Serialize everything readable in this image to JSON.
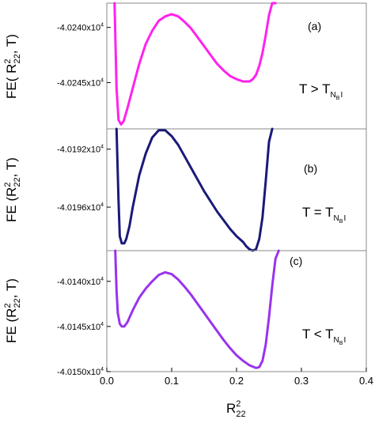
{
  "chart_data": [
    {
      "type": "line",
      "panel_label": "(a)",
      "condition": {
        "lhs": "T > T",
        "subscript": "N",
        "subsub": "B",
        "tail": "I"
      },
      "ylabel": {
        "prefix": "FE( R",
        "sup": "2",
        "sub": "22",
        "suffix": ", T)"
      },
      "color": "#ff22ee",
      "xlim": [
        0.0,
        0.4
      ],
      "ylim": [
        -40249.2,
        -40237.8
      ],
      "yticks": [
        {
          "value": -40240,
          "mantissa": "-4.0240x10",
          "exp": "4"
        },
        {
          "value": -40245,
          "mantissa": "-4.0245x10",
          "exp": "4"
        }
      ],
      "series": [
        {
          "x": [
            0.012,
            0.015,
            0.018,
            0.022,
            0.026,
            0.032,
            0.04,
            0.05,
            0.06,
            0.07,
            0.08,
            0.09,
            0.1,
            0.11,
            0.12,
            0.13,
            0.14,
            0.15,
            0.16,
            0.17,
            0.18,
            0.19,
            0.2,
            0.21,
            0.22,
            0.225,
            0.23,
            0.235,
            0.24,
            0.245,
            0.25,
            0.255,
            0.26
          ],
          "y": [
            -40237.8,
            -40245.5,
            -40248.4,
            -40248.8,
            -40248.5,
            -40247.3,
            -40245.5,
            -40243.3,
            -40241.5,
            -40240.3,
            -40239.4,
            -40239.0,
            -40238.8,
            -40239.0,
            -40239.5,
            -40240.1,
            -40240.9,
            -40241.7,
            -40242.5,
            -40243.3,
            -40243.9,
            -40244.4,
            -40244.7,
            -40244.9,
            -40244.9,
            -40244.7,
            -40244.3,
            -40243.5,
            -40242.3,
            -40240.7,
            -40238.9,
            -40237.8,
            -40237.8
          ]
        }
      ]
    },
    {
      "type": "line",
      "panel_label": "(b)",
      "condition": {
        "lhs": "T = T",
        "subscript": "N",
        "subsub": "B",
        "tail": "I"
      },
      "ylabel": {
        "prefix": "FE (R",
        "sup": "2",
        "sub": "22",
        "suffix": ", T)"
      },
      "color": "#1a1a7a",
      "xlim": [
        0.0,
        0.4
      ],
      "ylim": [
        -40199.0,
        -40190.6
      ],
      "yticks": [
        {
          "value": -40192,
          "mantissa": "-4.0192x10",
          "exp": "4"
        },
        {
          "value": -40196,
          "mantissa": "-4.0196x10",
          "exp": "4"
        }
      ],
      "series": [
        {
          "x": [
            0.015,
            0.018,
            0.02,
            0.023,
            0.027,
            0.03,
            0.035,
            0.04,
            0.05,
            0.06,
            0.07,
            0.08,
            0.09,
            0.1,
            0.11,
            0.12,
            0.13,
            0.14,
            0.15,
            0.16,
            0.17,
            0.18,
            0.19,
            0.2,
            0.21,
            0.215,
            0.22,
            0.225,
            0.23,
            0.235,
            0.24,
            0.245,
            0.25,
            0.255
          ],
          "y": [
            -40190.6,
            -40195.5,
            -40198.0,
            -40198.5,
            -40198.5,
            -40198.2,
            -40197.3,
            -40196.0,
            -40193.8,
            -40192.3,
            -40191.2,
            -40190.7,
            -40190.7,
            -40191.1,
            -40191.7,
            -40192.5,
            -40193.3,
            -40194.1,
            -40194.9,
            -40195.6,
            -40196.3,
            -40196.9,
            -40197.5,
            -40198.0,
            -40198.4,
            -40198.7,
            -40198.9,
            -40199.0,
            -40198.9,
            -40198.2,
            -40196.7,
            -40194.2,
            -40191.5,
            -40190.6
          ]
        }
      ]
    },
    {
      "type": "line",
      "panel_label": "(c)",
      "condition": {
        "lhs": "T < T",
        "subscript": "N",
        "subsub": "B",
        "tail": "I"
      },
      "ylabel": {
        "prefix": "FE (R",
        "sup": "2",
        "sub": "22",
        "suffix": ", T)"
      },
      "color": "#9933ee",
      "xlim": [
        0.0,
        0.4
      ],
      "ylim": [
        -40150.0,
        -40136.6
      ],
      "yticks": [
        {
          "value": -40140,
          "mantissa": "-4.0140x10",
          "exp": "4"
        },
        {
          "value": -40145,
          "mantissa": "-4.0145x10",
          "exp": "4"
        },
        {
          "value": -40150,
          "mantissa": "-4.0150x10",
          "exp": "4"
        }
      ],
      "xticks": [
        0.0,
        0.1,
        0.2,
        0.3,
        0.4
      ],
      "xlabel": {
        "main": "R",
        "sup": "2",
        "sub": "22"
      },
      "series": [
        {
          "x": [
            0.013,
            0.015,
            0.017,
            0.02,
            0.023,
            0.027,
            0.032,
            0.04,
            0.05,
            0.06,
            0.07,
            0.08,
            0.09,
            0.1,
            0.11,
            0.12,
            0.13,
            0.14,
            0.15,
            0.16,
            0.17,
            0.18,
            0.19,
            0.2,
            0.21,
            0.22,
            0.23,
            0.235,
            0.24,
            0.245,
            0.25,
            0.255,
            0.26,
            0.265
          ],
          "y": [
            -40136.6,
            -40141.0,
            -40143.5,
            -40144.7,
            -40145.0,
            -40145.0,
            -40144.5,
            -40143.2,
            -40141.8,
            -40140.8,
            -40140.0,
            -40139.3,
            -40139.0,
            -40139.2,
            -40139.8,
            -40140.6,
            -40141.5,
            -40142.5,
            -40143.5,
            -40144.5,
            -40145.5,
            -40146.5,
            -40147.4,
            -40148.2,
            -40148.8,
            -40149.3,
            -40149.6,
            -40149.5,
            -40148.8,
            -40147.0,
            -40144.0,
            -40140.5,
            -40137.5,
            -40136.6
          ]
        }
      ]
    }
  ]
}
